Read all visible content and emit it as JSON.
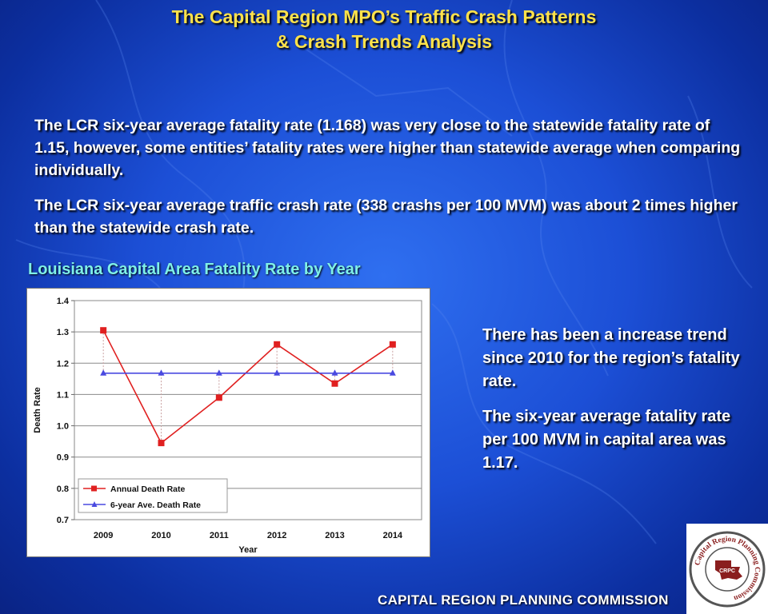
{
  "slide": {
    "title_line1": "The Capital Region MPO’s Traffic Crash Patterns",
    "title_line2": "& Crash Trends Analysis",
    "paragraph1": "The LCR six-year average fatality rate (1.168) was very close to the statewide fatality rate of 1.15, however,  some entities’ fatality rates were higher than statewide average when comparing individually.",
    "paragraph2": "The LCR  six-year average traffic crash rate (338 crashs per 100 MVM) was about  2 times higher than the statewide crash rate.",
    "side_note1": "There has been a increase trend since 2010 for the region’s fatality rate.",
    "side_note2": "The six-year average fatality rate per 100 MVM in capital area was 1.17.",
    "footer": "CAPITAL REGION PLANNING COMMISSION",
    "logo": {
      "ring_text": "Capital Region Planning Commission",
      "center_text": "CRPC"
    }
  },
  "colors": {
    "title": "#ffe24a",
    "chart_title": "#7ff0e8",
    "annual": "#e02020",
    "average": "#4a4ae0"
  },
  "chart_data": {
    "type": "line",
    "title": "Louisiana Capital Area Fatality Rate by Year",
    "xlabel": "Year",
    "ylabel": "Death Rate",
    "categories": [
      "2009",
      "2010",
      "2011",
      "2012",
      "2013",
      "2014"
    ],
    "series": [
      {
        "name": "Annual Death Rate",
        "marker": "square",
        "values": [
          1.305,
          0.945,
          1.09,
          1.26,
          1.135,
          1.26
        ]
      },
      {
        "name": "6-year Ave. Death Rate",
        "marker": "triangle",
        "values": [
          1.168,
          1.168,
          1.168,
          1.168,
          1.168,
          1.168
        ]
      }
    ],
    "ylim": [
      0.7,
      1.4
    ],
    "yticks": [
      0.7,
      0.8,
      0.9,
      1.0,
      1.1,
      1.2,
      1.3,
      1.4
    ],
    "ytick_labels": [
      "0.7",
      "0.8",
      "0.9",
      "1.0",
      "1.1",
      "1.2",
      "1.3",
      "1.4"
    ],
    "grid": true,
    "legend": "bottom-left"
  }
}
